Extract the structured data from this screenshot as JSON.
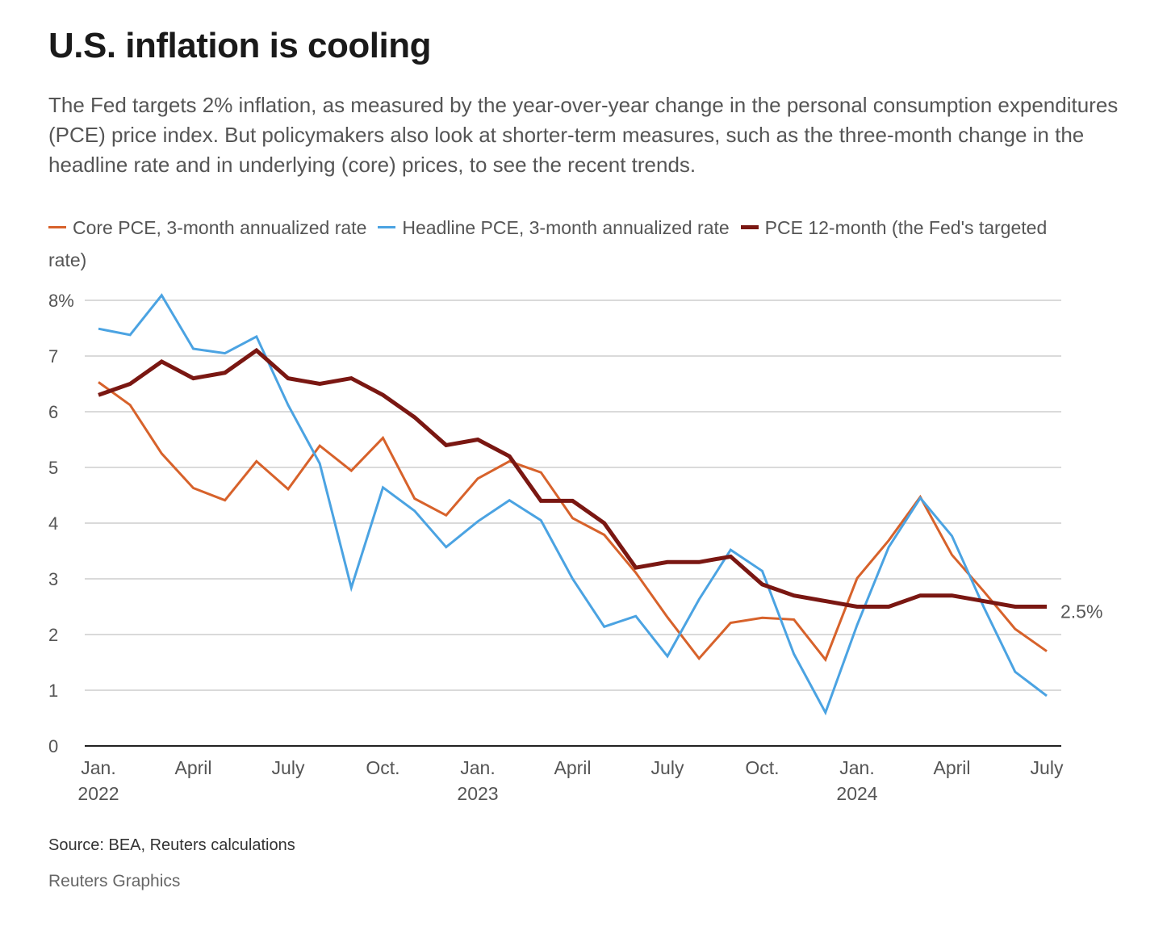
{
  "title": "U.S. inflation is cooling",
  "subtitle": "The Fed targets 2% inflation, as measured by the year-over-year change in the personal consumption expenditures (PCE) price index. But policymakers also look at shorter-term measures, such as the three-month change in the headline rate and in underlying (core) prices, to see the recent trends.",
  "source": "Source: BEA, Reuters calculations",
  "credit": "Reuters Graphics",
  "chart_data": {
    "type": "line",
    "ylim": [
      0,
      8
    ],
    "y_ticks": [
      {
        "value": 0,
        "label": "0"
      },
      {
        "value": 1,
        "label": "1"
      },
      {
        "value": 2,
        "label": "2"
      },
      {
        "value": 3,
        "label": "3"
      },
      {
        "value": 4,
        "label": "4"
      },
      {
        "value": 5,
        "label": "5"
      },
      {
        "value": 6,
        "label": "6"
      },
      {
        "value": 7,
        "label": "7"
      },
      {
        "value": 8,
        "label": "8%"
      }
    ],
    "x": [
      "2022-01",
      "2022-02",
      "2022-03",
      "2022-04",
      "2022-05",
      "2022-06",
      "2022-07",
      "2022-08",
      "2022-09",
      "2022-10",
      "2022-11",
      "2022-12",
      "2023-01",
      "2023-02",
      "2023-03",
      "2023-04",
      "2023-05",
      "2023-06",
      "2023-07",
      "2023-08",
      "2023-09",
      "2023-10",
      "2023-11",
      "2023-12",
      "2024-01",
      "2024-02",
      "2024-03",
      "2024-04",
      "2024-05",
      "2024-06",
      "2024-07"
    ],
    "x_ticks": [
      {
        "index": 0,
        "label": "Jan.",
        "year": "2022"
      },
      {
        "index": 3,
        "label": "April",
        "year": ""
      },
      {
        "index": 6,
        "label": "July",
        "year": ""
      },
      {
        "index": 9,
        "label": "Oct.",
        "year": ""
      },
      {
        "index": 12,
        "label": "Jan.",
        "year": "2023"
      },
      {
        "index": 15,
        "label": "April",
        "year": ""
      },
      {
        "index": 18,
        "label": "July",
        "year": ""
      },
      {
        "index": 21,
        "label": "Oct.",
        "year": ""
      },
      {
        "index": 24,
        "label": "Jan.",
        "year": "2024"
      },
      {
        "index": 27,
        "label": "April",
        "year": ""
      },
      {
        "index": 30,
        "label": "July",
        "year": ""
      }
    ],
    "series": [
      {
        "name": "Core PCE, 3-month annualized rate",
        "color": "#d7622b",
        "width": "thin",
        "values": [
          6.53,
          6.12,
          5.25,
          4.63,
          4.41,
          5.11,
          4.61,
          5.39,
          4.94,
          5.53,
          4.44,
          4.14,
          4.8,
          5.11,
          4.91,
          4.09,
          3.79,
          3.11,
          2.31,
          1.57,
          2.21,
          2.3,
          2.27,
          1.55,
          3.01,
          3.69,
          4.47,
          3.43,
          2.78,
          2.1,
          1.7
        ]
      },
      {
        "name": "Headline PCE, 3-month annualized rate",
        "color": "#4ba3e2",
        "width": "thin",
        "values": [
          7.49,
          7.38,
          8.09,
          7.13,
          7.05,
          7.35,
          6.12,
          5.07,
          2.84,
          4.64,
          4.22,
          3.57,
          4.03,
          4.41,
          4.05,
          3.0,
          2.14,
          2.33,
          1.61,
          2.63,
          3.52,
          3.14,
          1.65,
          0.6,
          2.17,
          3.57,
          4.45,
          3.77,
          2.5,
          1.33,
          0.9
        ]
      },
      {
        "name": "PCE 12-month (the Fed's targeted rate)",
        "color": "#7a1712",
        "width": "thick",
        "values": [
          6.3,
          6.5,
          6.9,
          6.6,
          6.7,
          7.1,
          6.6,
          6.5,
          6.6,
          6.3,
          5.9,
          5.4,
          5.5,
          5.2,
          4.4,
          4.4,
          4.0,
          3.2,
          3.3,
          3.3,
          3.4,
          2.9,
          2.7,
          2.6,
          2.5,
          2.5,
          2.7,
          2.7,
          2.6,
          2.5,
          2.5
        ]
      }
    ],
    "annotations": [
      {
        "series": 2,
        "index": 30,
        "text": "2.5%"
      }
    ],
    "grid": true,
    "legend_position": "top-left"
  }
}
